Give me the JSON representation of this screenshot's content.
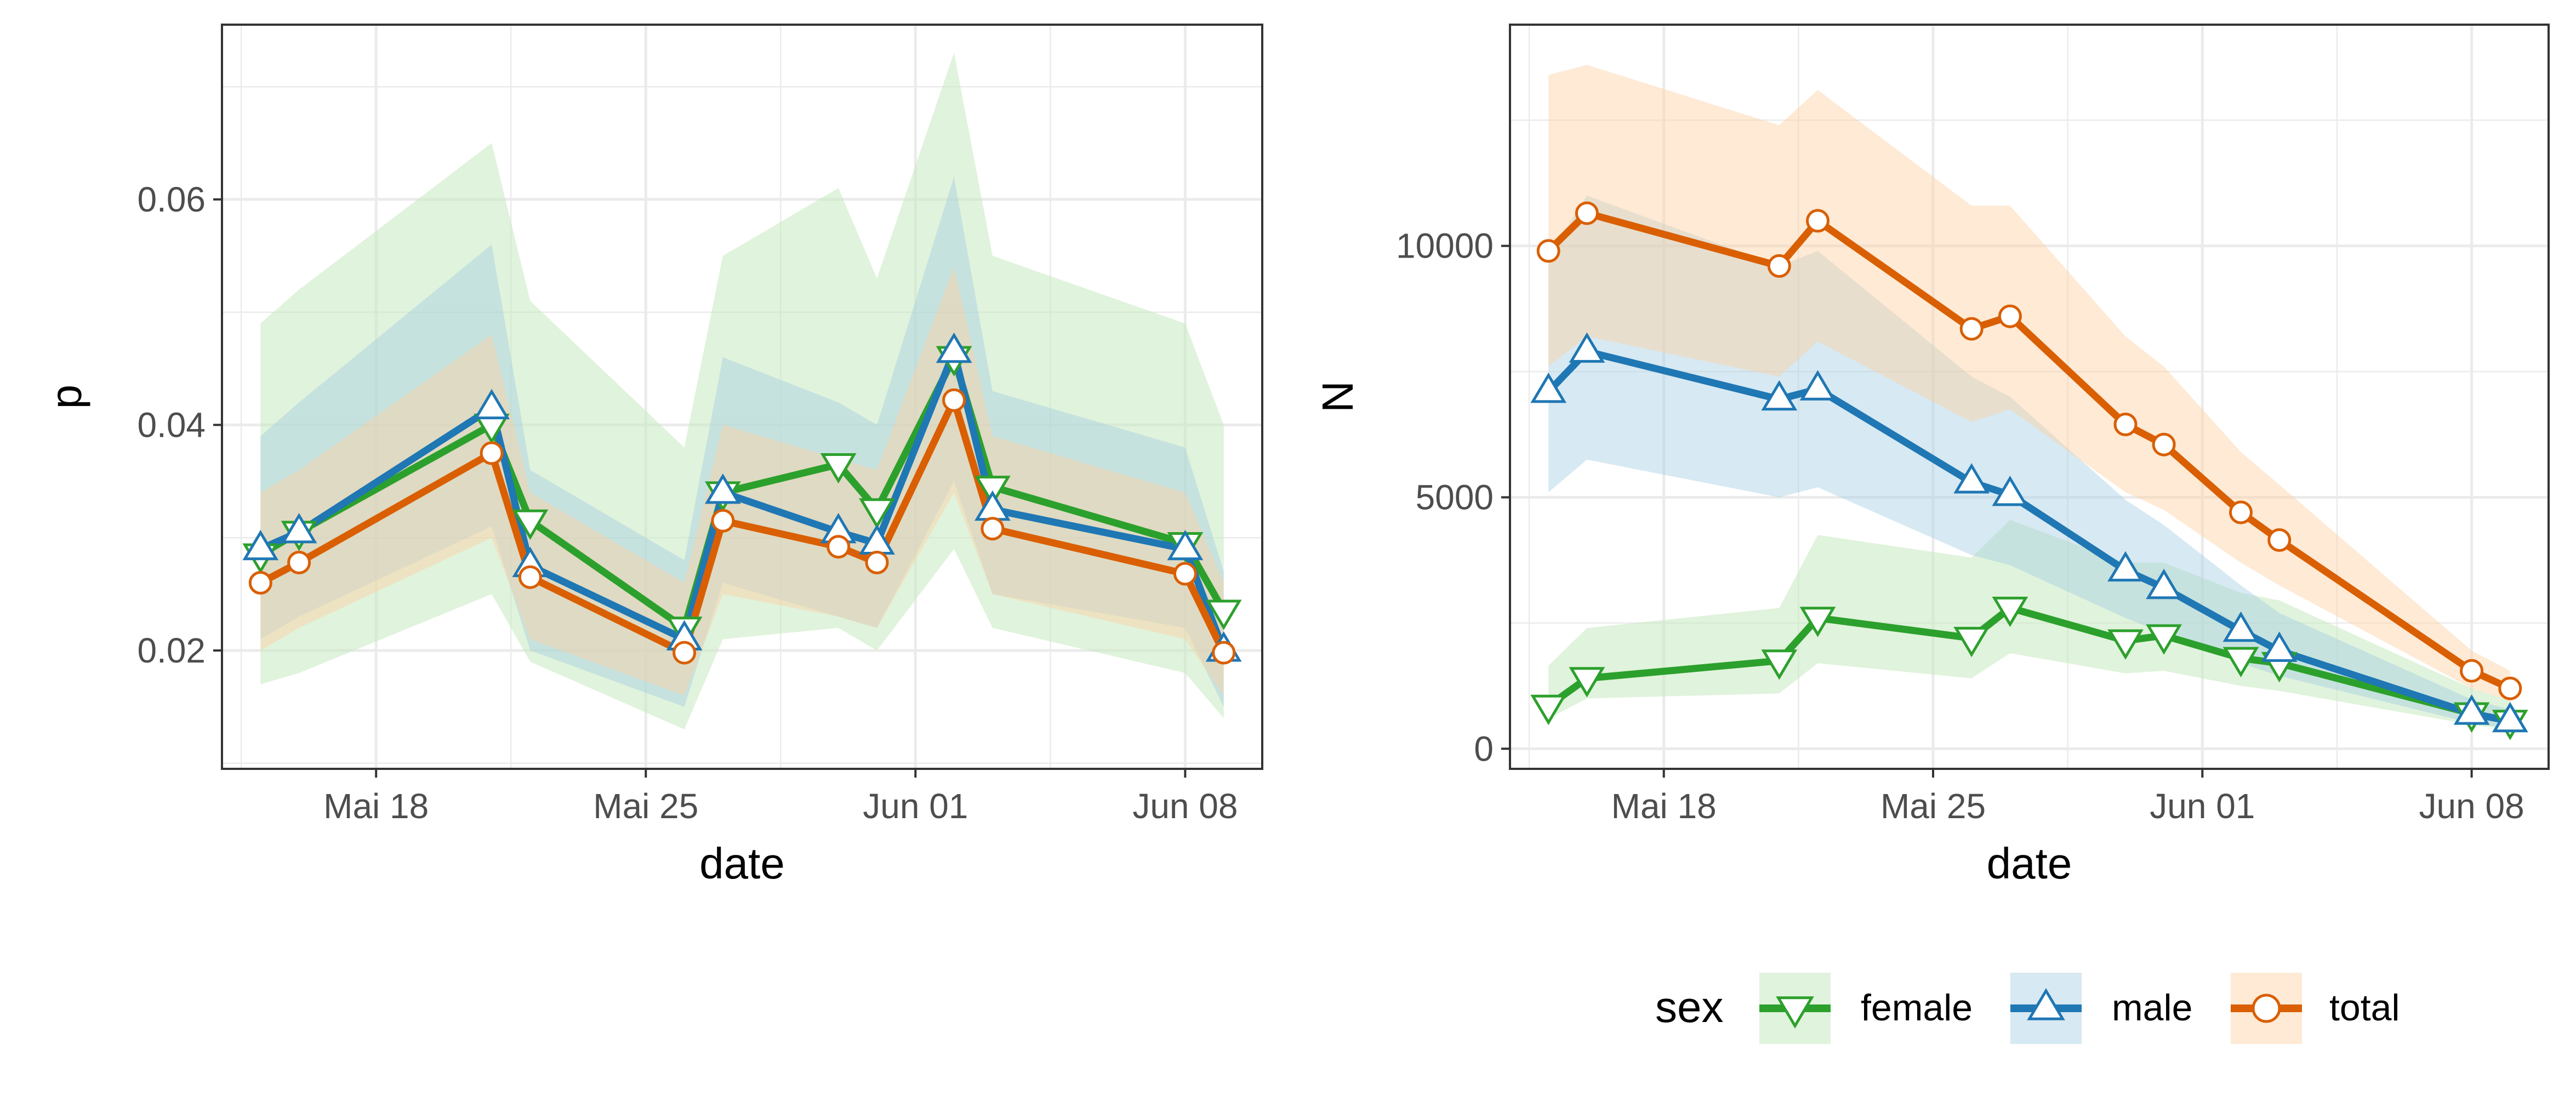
{
  "colors": {
    "female": "#2ca02c",
    "male": "#1f77b4",
    "total": "#d95f02",
    "grid": "#ebebeb",
    "panel_border": "#333333",
    "ribbon_female": "#c7e9c0",
    "ribbon_male": "#a6cee3",
    "ribbon_total": "#fdd0a2"
  },
  "legend": {
    "title": "sex",
    "position": "bottom",
    "entries": [
      {
        "key": "female",
        "label": "female",
        "marker": "triangle-down-icon"
      },
      {
        "key": "male",
        "label": "male",
        "marker": "triangle-up-icon"
      },
      {
        "key": "total",
        "label": "total",
        "marker": "circle-icon"
      }
    ]
  },
  "chart_data": [
    {
      "type": "line",
      "xlabel": "date",
      "ylabel": "p",
      "xlim": [
        "2020-05-14",
        "2020-06-10"
      ],
      "ylim": [
        0.0095,
        0.0755
      ],
      "x_ticks": [
        {
          "date": "2020-05-18",
          "label": "Mai 18"
        },
        {
          "date": "2020-05-25",
          "label": "Mai 25"
        },
        {
          "date": "2020-06-01",
          "label": "Jun 01"
        },
        {
          "date": "2020-06-08",
          "label": "Jun 08"
        }
      ],
      "y_ticks": [
        {
          "value": 0.02,
          "label": "0.02"
        },
        {
          "value": 0.04,
          "label": "0.04"
        },
        {
          "value": 0.06,
          "label": "0.06"
        }
      ],
      "grid": true,
      "series": [
        {
          "name": "female",
          "x": [
            "2020-05-15",
            "2020-05-16",
            "2020-05-21",
            "2020-05-22",
            "2020-05-26",
            "2020-05-27",
            "2020-05-30",
            "2020-05-31",
            "2020-06-02",
            "2020-06-03",
            "2020-06-08",
            "2020-06-09"
          ],
          "y": [
            0.0285,
            0.0305,
            0.04,
            0.0315,
            0.022,
            0.034,
            0.0365,
            0.0325,
            0.046,
            0.0345,
            0.0295,
            0.0235
          ],
          "lower": [
            0.017,
            0.018,
            0.025,
            0.019,
            0.013,
            0.021,
            0.022,
            0.02,
            0.029,
            0.022,
            0.018,
            0.014
          ],
          "upper": [
            0.049,
            0.052,
            0.065,
            0.051,
            0.038,
            0.055,
            0.061,
            0.053,
            0.073,
            0.055,
            0.049,
            0.04
          ]
        },
        {
          "name": "male",
          "x": [
            "2020-05-15",
            "2020-05-16",
            "2020-05-21",
            "2020-05-22",
            "2020-05-26",
            "2020-05-27",
            "2020-05-30",
            "2020-05-31",
            "2020-06-02",
            "2020-06-03",
            "2020-06-08",
            "2020-06-09"
          ],
          "y": [
            0.029,
            0.0305,
            0.0415,
            0.0275,
            0.021,
            0.034,
            0.0305,
            0.0295,
            0.0465,
            0.0325,
            0.029,
            0.02
          ],
          "lower": [
            0.021,
            0.023,
            0.031,
            0.02,
            0.015,
            0.026,
            0.023,
            0.022,
            0.035,
            0.025,
            0.022,
            0.015
          ],
          "upper": [
            0.039,
            0.042,
            0.056,
            0.036,
            0.028,
            0.046,
            0.042,
            0.04,
            0.062,
            0.043,
            0.038,
            0.027
          ]
        },
        {
          "name": "total",
          "x": [
            "2020-05-15",
            "2020-05-16",
            "2020-05-21",
            "2020-05-22",
            "2020-05-26",
            "2020-05-27",
            "2020-05-30",
            "2020-05-31",
            "2020-06-02",
            "2020-06-03",
            "2020-06-08",
            "2020-06-09"
          ],
          "y": [
            0.026,
            0.0278,
            0.0375,
            0.0265,
            0.0198,
            0.0315,
            0.0292,
            0.0278,
            0.0422,
            0.0308,
            0.0268,
            0.0198
          ],
          "lower": [
            0.02,
            0.022,
            0.03,
            0.021,
            0.016,
            0.025,
            0.023,
            0.022,
            0.034,
            0.025,
            0.021,
            0.016
          ],
          "upper": [
            0.034,
            0.036,
            0.048,
            0.034,
            0.026,
            0.04,
            0.037,
            0.036,
            0.054,
            0.039,
            0.034,
            0.026
          ]
        }
      ]
    },
    {
      "type": "line",
      "xlabel": "date",
      "ylabel": "N",
      "xlim": [
        "2020-05-14",
        "2020-06-10"
      ],
      "ylim": [
        -400,
        14400
      ],
      "x_ticks": [
        {
          "date": "2020-05-18",
          "label": "Mai 18"
        },
        {
          "date": "2020-05-25",
          "label": "Mai 25"
        },
        {
          "date": "2020-06-01",
          "label": "Jun 01"
        },
        {
          "date": "2020-06-08",
          "label": "Jun 08"
        }
      ],
      "y_ticks": [
        {
          "value": 0,
          "label": "0"
        },
        {
          "value": 5000,
          "label": "5000"
        },
        {
          "value": 10000,
          "label": "10000"
        }
      ],
      "grid": true,
      "series": [
        {
          "name": "female",
          "x": [
            "2020-05-15",
            "2020-05-16",
            "2020-05-21",
            "2020-05-22",
            "2020-05-26",
            "2020-05-27",
            "2020-05-30",
            "2020-05-31",
            "2020-06-02",
            "2020-06-03",
            "2020-06-08",
            "2020-06-09"
          ],
          "y": [
            850,
            1400,
            1750,
            2600,
            2200,
            2800,
            2150,
            2250,
            1800,
            1700,
            700,
            550
          ],
          "lower": [
            600,
            1000,
            1100,
            1700,
            1400,
            1900,
            1500,
            1550,
            1250,
            1150,
            480,
            370
          ],
          "upper": [
            1650,
            2400,
            2800,
            4250,
            3800,
            4550,
            3700,
            3700,
            3100,
            2950,
            1200,
            950
          ]
        },
        {
          "name": "male",
          "x": [
            "2020-05-15",
            "2020-05-16",
            "2020-05-21",
            "2020-05-22",
            "2020-05-26",
            "2020-05-27",
            "2020-05-30",
            "2020-05-31",
            "2020-06-02",
            "2020-06-03",
            "2020-06-08",
            "2020-06-09"
          ],
          "y": [
            7100,
            7900,
            6950,
            7150,
            5300,
            5050,
            3550,
            3200,
            2350,
            1950,
            700,
            550
          ],
          "lower": [
            5100,
            5750,
            5000,
            5200,
            3850,
            3650,
            2600,
            2300,
            1700,
            1450,
            510,
            400
          ],
          "upper": [
            9800,
            11000,
            9600,
            9900,
            7400,
            7000,
            4950,
            4450,
            3250,
            2700,
            980,
            780
          ]
        },
        {
          "name": "total",
          "x": [
            "2020-05-15",
            "2020-05-16",
            "2020-05-21",
            "2020-05-22",
            "2020-05-26",
            "2020-05-27",
            "2020-05-30",
            "2020-05-31",
            "2020-06-02",
            "2020-06-03",
            "2020-06-08",
            "2020-06-09"
          ],
          "y": [
            9900,
            10650,
            9600,
            10500,
            8350,
            8600,
            6450,
            6050,
            4700,
            4150,
            1550,
            1200
          ],
          "lower": [
            7600,
            8200,
            7400,
            8100,
            6500,
            6750,
            5100,
            4750,
            3700,
            3250,
            1200,
            950
          ],
          "upper": [
            13400,
            13600,
            12400,
            13100,
            10800,
            10800,
            8200,
            7600,
            5900,
            5250,
            1950,
            1550
          ]
        }
      ]
    }
  ]
}
